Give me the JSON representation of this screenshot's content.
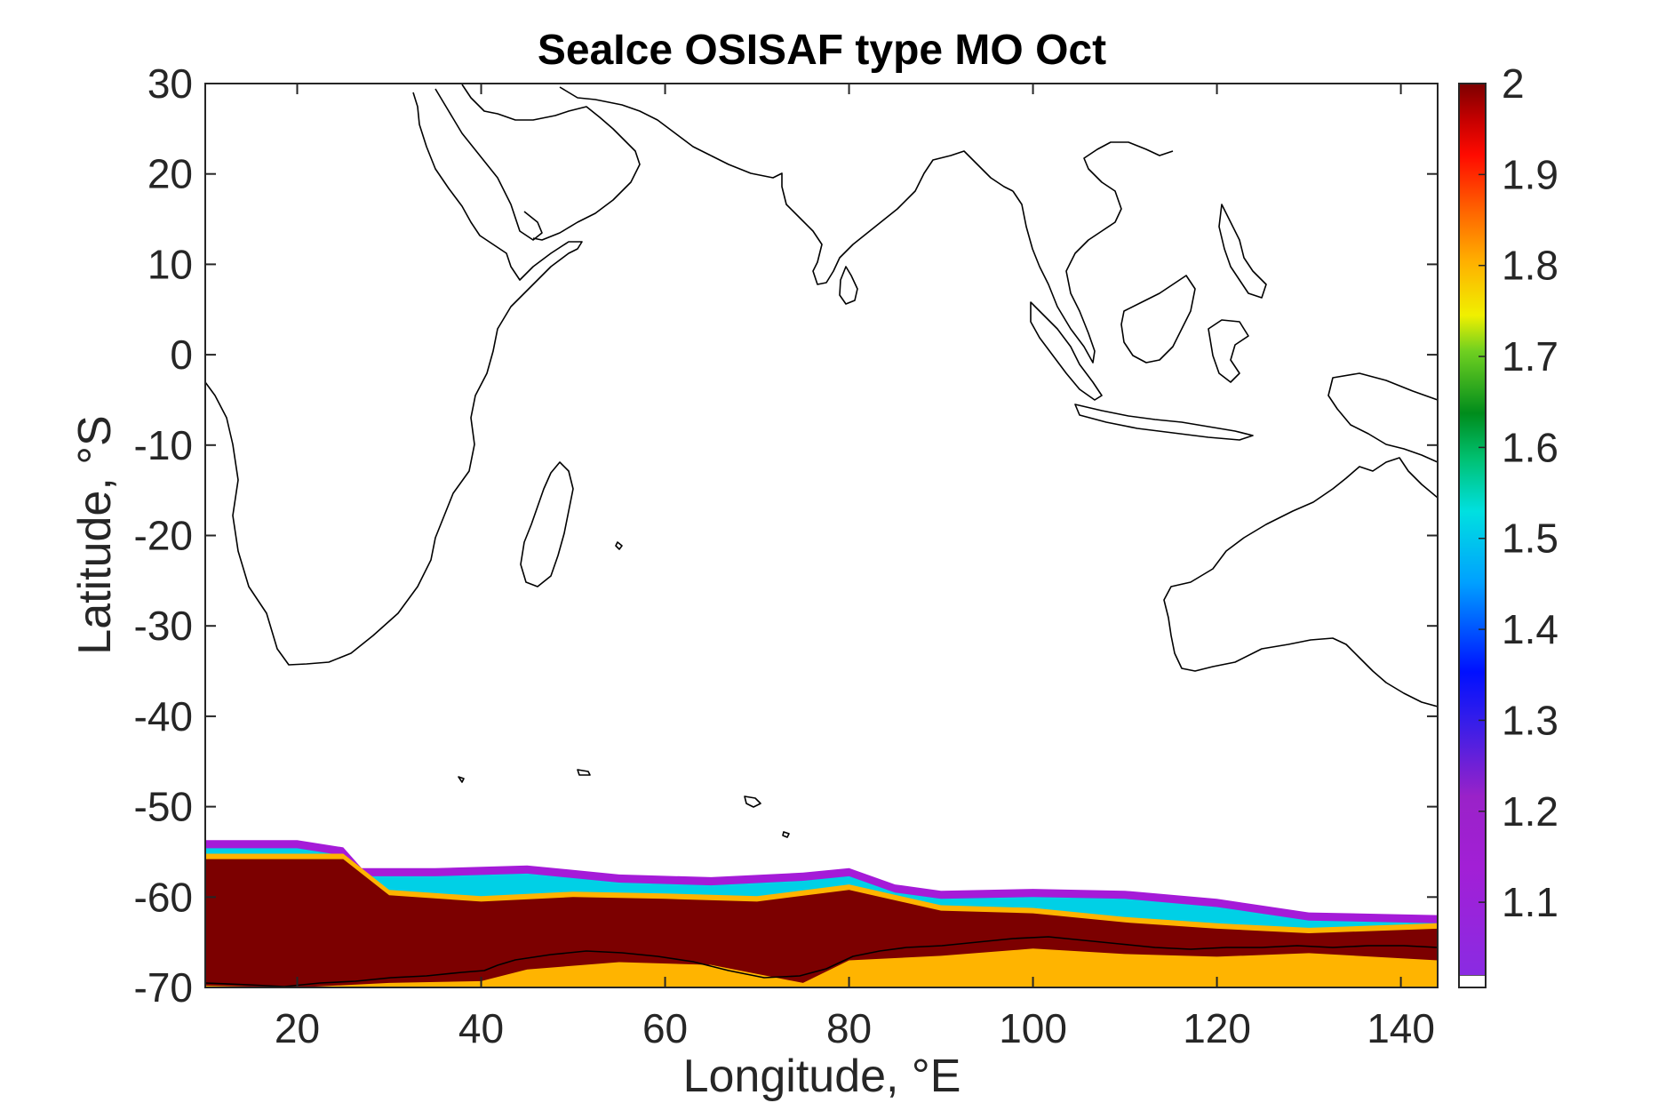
{
  "figure": {
    "title": "SeaIce OSISAF type MO Oct",
    "xlabel": "Longitude, °E",
    "ylabel": "Latitude, °S"
  },
  "chart_data": {
    "type": "heatmap",
    "title": "SeaIce OSISAF type MO Oct",
    "xlabel": "Longitude, °E",
    "ylabel": "Latitude, °S",
    "xlim": [
      10,
      144
    ],
    "ylim": [
      -70,
      30
    ],
    "x_ticks": [
      20,
      40,
      60,
      80,
      100,
      120,
      140
    ],
    "y_ticks": [
      30,
      20,
      10,
      0,
      -10,
      -20,
      -30,
      -40,
      -50,
      -60,
      -70
    ],
    "colorbar": {
      "range": [
        1.02,
        2
      ],
      "ticks": [
        "2",
        "1.9",
        "1.8",
        "1.7",
        "1.6",
        "1.5",
        "1.4",
        "1.3",
        "1.2",
        "1.1"
      ],
      "colormap": "jet-like (purple-blue-cyan-green-yellow-orange-red-darkred)"
    },
    "ice_edge_outer_lat": [
      {
        "lon": 10,
        "lat": -53.7
      },
      {
        "lon": 20,
        "lat": -53.7
      },
      {
        "lon": 25,
        "lat": -54.5
      },
      {
        "lon": 27,
        "lat": -56.8
      },
      {
        "lon": 35,
        "lat": -56.8
      },
      {
        "lon": 45,
        "lat": -56.5
      },
      {
        "lon": 55,
        "lat": -57.5
      },
      {
        "lon": 65,
        "lat": -57.8
      },
      {
        "lon": 75,
        "lat": -57.3
      },
      {
        "lon": 80,
        "lat": -56.8
      },
      {
        "lon": 85,
        "lat": -58.6
      },
      {
        "lon": 90,
        "lat": -59.3
      },
      {
        "lon": 100,
        "lat": -59.1
      },
      {
        "lon": 110,
        "lat": -59.3
      },
      {
        "lon": 120,
        "lat": -60.2
      },
      {
        "lon": 130,
        "lat": -61.7
      },
      {
        "lon": 144,
        "lat": -62
      }
    ],
    "ice_edge_inner_lat": [
      {
        "lon": 10,
        "lat": -55.8
      },
      {
        "lon": 25,
        "lat": -55.8
      },
      {
        "lon": 30,
        "lat": -59.8
      },
      {
        "lon": 40,
        "lat": -60.5
      },
      {
        "lon": 50,
        "lat": -60
      },
      {
        "lon": 60,
        "lat": -60.2
      },
      {
        "lon": 70,
        "lat": -60.5
      },
      {
        "lon": 80,
        "lat": -59.2
      },
      {
        "lon": 90,
        "lat": -61.5
      },
      {
        "lon": 100,
        "lat": -61.8
      },
      {
        "lon": 110,
        "lat": -62.8
      },
      {
        "lon": 120,
        "lat": -63.5
      },
      {
        "lon": 130,
        "lat": -64
      },
      {
        "lon": 144,
        "lat": -63.5
      }
    ],
    "antarctic_coast_lat": [
      {
        "lon": 10,
        "lat": -69.8
      },
      {
        "lon": 20,
        "lat": -70
      },
      {
        "lon": 30,
        "lat": -69.5
      },
      {
        "lon": 40,
        "lat": -69.3
      },
      {
        "lon": 45,
        "lat": -68
      },
      {
        "lon": 55,
        "lat": -67.2
      },
      {
        "lon": 65,
        "lat": -67.5
      },
      {
        "lon": 75,
        "lat": -69.5
      },
      {
        "lon": 80,
        "lat": -67
      },
      {
        "lon": 90,
        "lat": -66.5
      },
      {
        "lon": 100,
        "lat": -65.7
      },
      {
        "lon": 110,
        "lat": -66.3
      },
      {
        "lon": 120,
        "lat": -66.6
      },
      {
        "lon": 130,
        "lat": -66.2
      },
      {
        "lon": 144,
        "lat": -67
      }
    ],
    "land_outlines": "Africa, Madagascar, Arabian Peninsula, Indian subcontinent, Sri Lanka, Southeast Asia, Indonesia, Philippines, Australia (black coastline only)"
  }
}
